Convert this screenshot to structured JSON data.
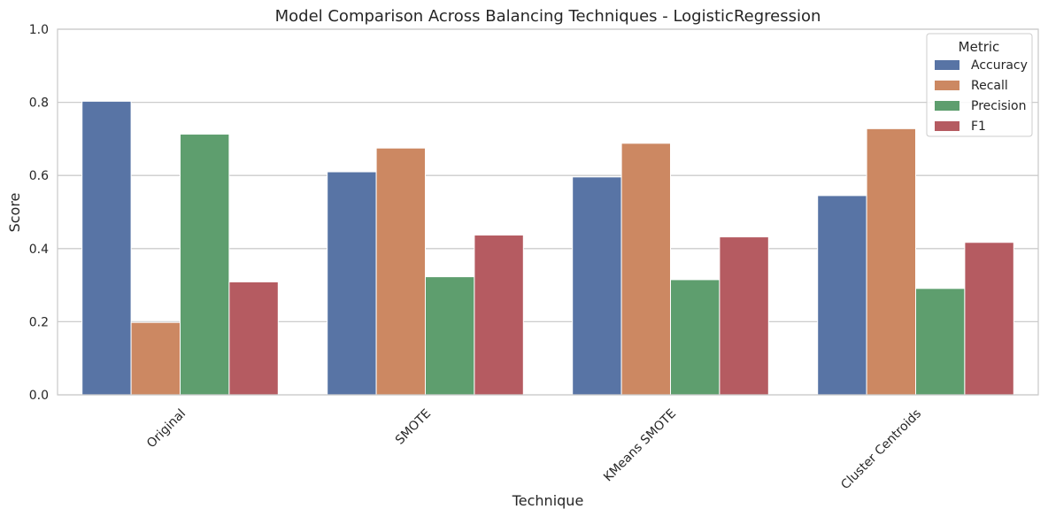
{
  "chart_data": {
    "type": "bar",
    "title": "Model Comparison Across Balancing Techniques - LogisticRegression",
    "xlabel": "Technique",
    "ylabel": "Score",
    "ylim": [
      0,
      1.0
    ],
    "yticks": [
      "0.0",
      "0.2",
      "0.4",
      "0.6",
      "0.8",
      "1.0"
    ],
    "grid": "horizontal",
    "legend": {
      "title": "Metric",
      "placement": "top-right"
    },
    "categories": [
      "Original",
      "SMOTE",
      "KMeans SMOTE",
      "Cluster Centroids"
    ],
    "series": [
      {
        "name": "Accuracy",
        "color": "#5874a5",
        "values": [
          0.803,
          0.61,
          0.596,
          0.545
        ]
      },
      {
        "name": "Recall",
        "color": "#cc8862",
        "values": [
          0.198,
          0.675,
          0.688,
          0.728
        ]
      },
      {
        "name": "Precision",
        "color": "#5e9e6e",
        "values": [
          0.713,
          0.323,
          0.315,
          0.291
        ]
      },
      {
        "name": "F1",
        "color": "#b55b61",
        "values": [
          0.309,
          0.437,
          0.432,
          0.417
        ]
      }
    ]
  }
}
